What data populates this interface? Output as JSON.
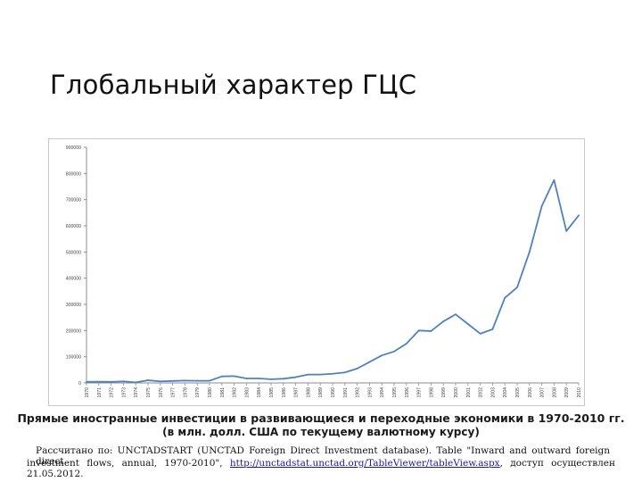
{
  "slide": {
    "title": "Глобальный характер ГЦС"
  },
  "caption": {
    "line1": "Прямые иностранные инвестиции в развивающиеся и переходные экономики в 1970-2010 гг.",
    "line2": "(в млн. долл. США по текущему валютному курсу)"
  },
  "source": {
    "line1": "Рассчитано по: UNCTADSTART (UNCTAD Foreign Direct Investment database). Table \"Inward and outward foreign direct",
    "line2_before": "investment flows, annual, 1970-2010\",",
    "link": "http://unctadstat.unctad.org/TableViewer/tableView.aspx",
    "line2_after": ", доступ осуществлен 21.05.2012."
  },
  "chart_data": {
    "type": "line",
    "title": "",
    "xlabel": "",
    "ylabel": "",
    "ylim": [
      0,
      900000
    ],
    "yticks": [
      0,
      100000,
      200000,
      300000,
      400000,
      500000,
      600000,
      700000,
      800000,
      900000
    ],
    "grid": false,
    "legend": "none",
    "color": "#4f81bd",
    "x": [
      "1970",
      "1971",
      "1972",
      "1973",
      "1974",
      "1975",
      "1976",
      "1977",
      "1978",
      "1979",
      "1980",
      "1981",
      "1982",
      "1983",
      "1984",
      "1985",
      "1986",
      "1987",
      "1988",
      "1989",
      "1990",
      "1991",
      "1992",
      "1993",
      "1994",
      "1995",
      "1996",
      "1997",
      "1998",
      "1999",
      "2000",
      "2001",
      "2002",
      "2003",
      "2004",
      "2005",
      "2006",
      "2007",
      "2008",
      "2009",
      "2010"
    ],
    "values": [
      4000,
      4500,
      4000,
      6000,
      2000,
      10000,
      6000,
      7500,
      9000,
      8000,
      8000,
      25000,
      26000,
      17000,
      17000,
      14000,
      16000,
      22000,
      32000,
      32000,
      35000,
      40000,
      55000,
      80000,
      105000,
      120000,
      150000,
      200000,
      198000,
      235000,
      262000,
      225000,
      188000,
      205000,
      325000,
      365000,
      500000,
      675000,
      775000,
      580000,
      640000
    ]
  }
}
